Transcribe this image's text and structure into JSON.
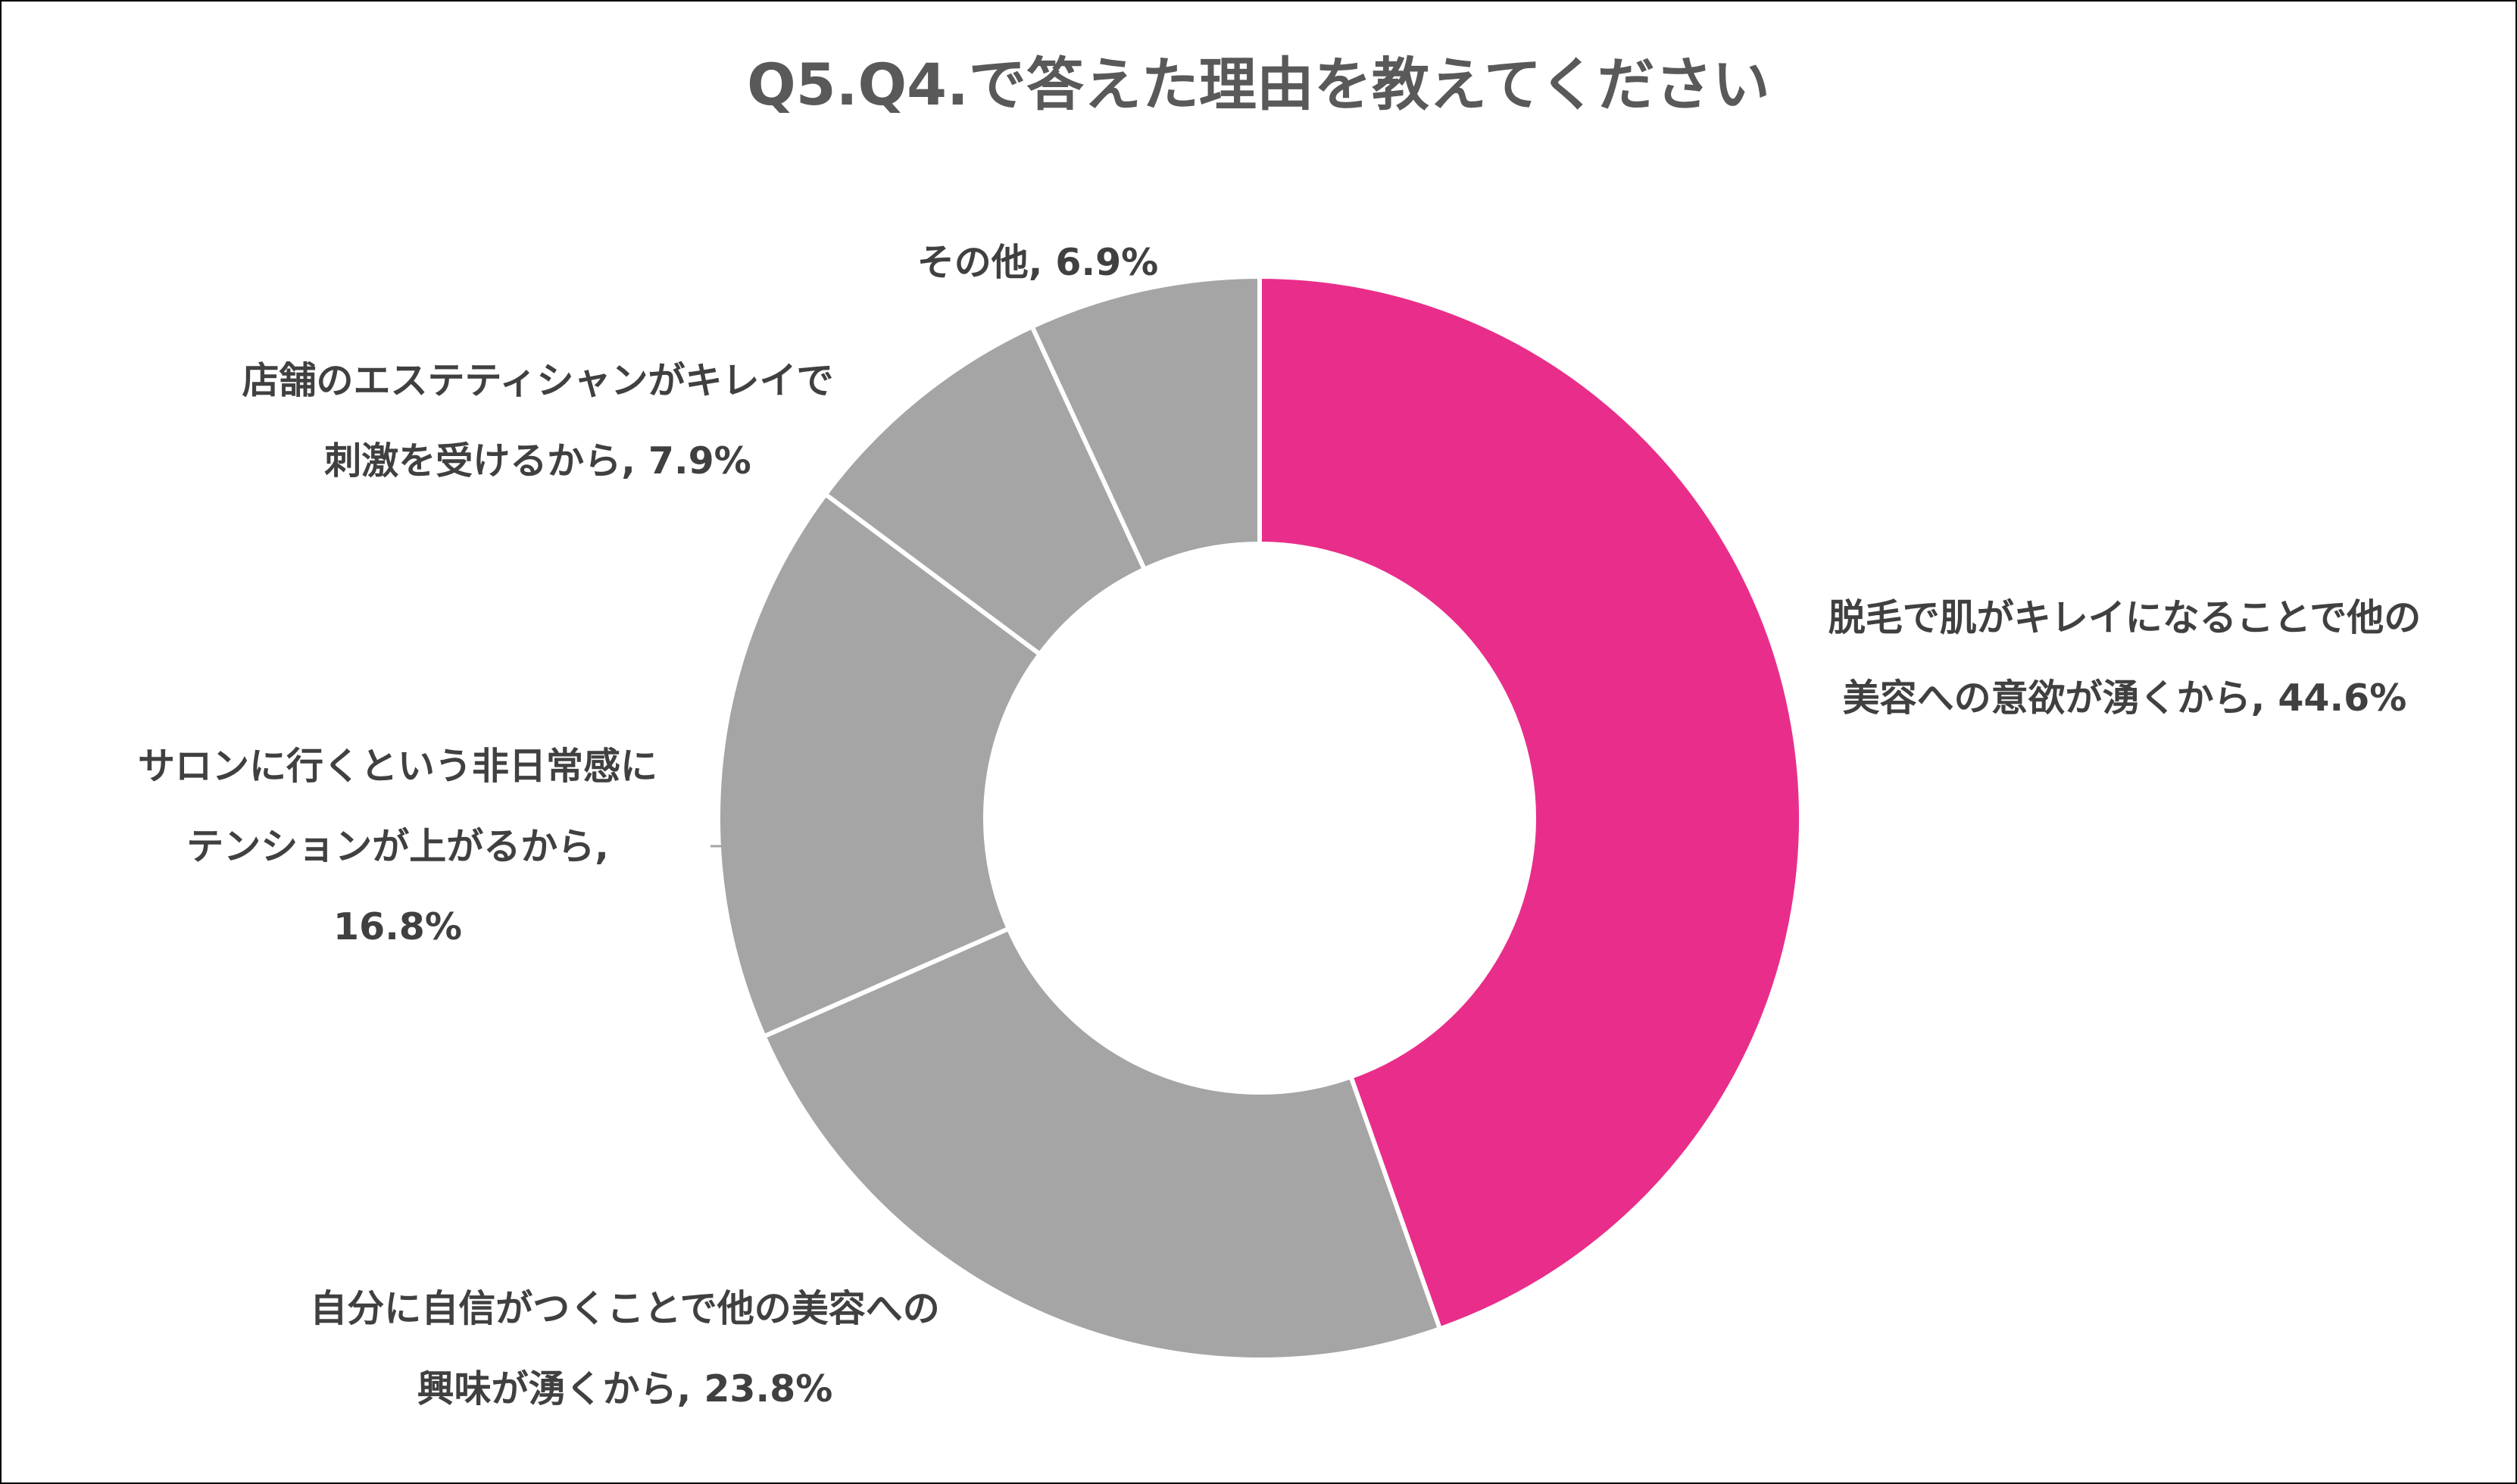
{
  "chart_data": {
    "type": "pie",
    "style": "donut",
    "title": "Q5.Q4.で答えた理由を教えてください",
    "slices": [
      {
        "value": 44.6,
        "label_lines": [
          "脱毛で肌がキレイになることで他の",
          "美容への意欲が湧くから, 44.6%"
        ],
        "color": "#E82E8A"
      },
      {
        "value": 23.8,
        "label_lines": [
          "自分に自信がつくことで他の美容への",
          "興味が湧くから, 23.8%"
        ],
        "color": "#A5A5A5"
      },
      {
        "value": 16.8,
        "label_lines": [
          "サロンに行くという非日常感に",
          "テンションが上がるから,",
          "16.8%"
        ],
        "color": "#A5A5A5"
      },
      {
        "value": 7.9,
        "label_lines": [
          "店舗のエステティシャンがキレイで",
          "刺激を受けるから, 7.9%"
        ],
        "color": "#A5A5A5"
      },
      {
        "value": 6.9,
        "label_lines": [
          "その他, 6.9%"
        ],
        "color": "#A5A5A5"
      }
    ],
    "start_angle_deg": 0,
    "direction": "clockwise",
    "legend": "none",
    "label_color": "#404040",
    "title_color": "#595959"
  }
}
